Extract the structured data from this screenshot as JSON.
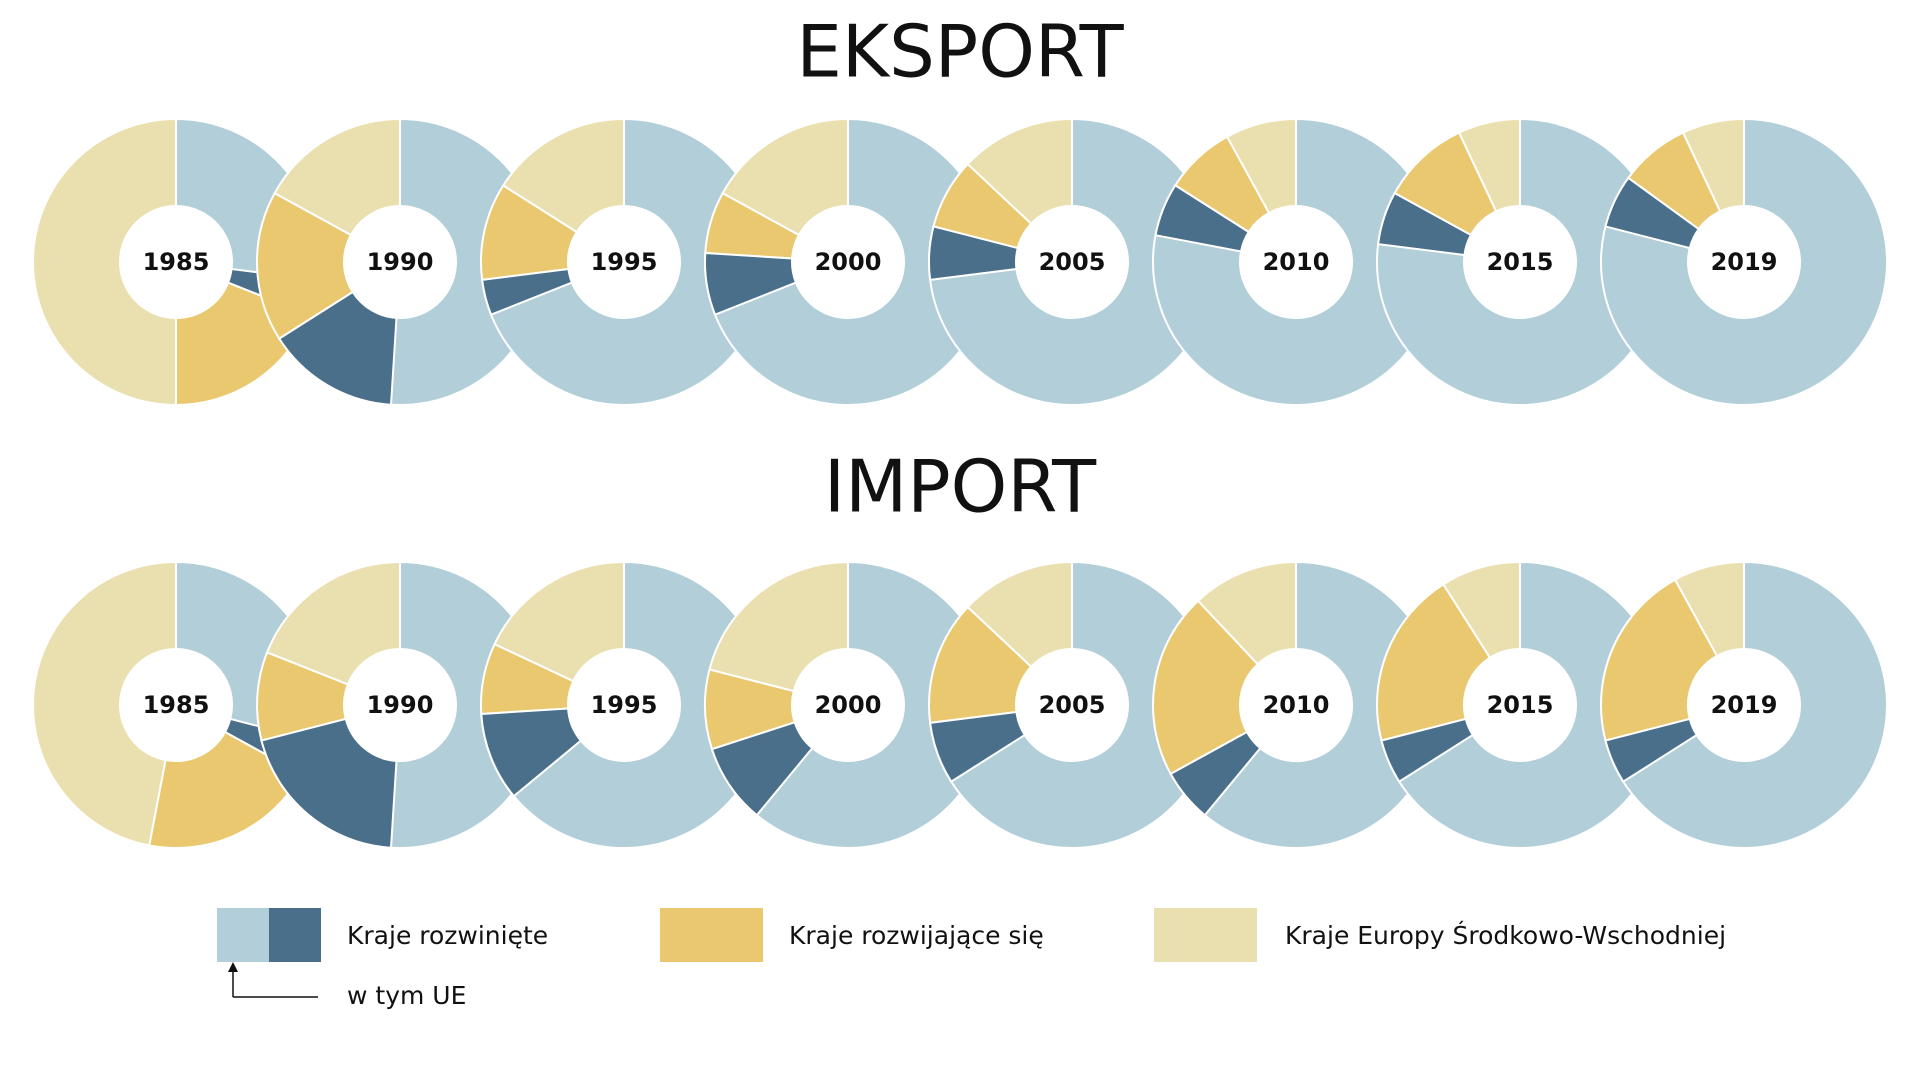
{
  "chart_data": [
    {
      "type": "donut",
      "title": "EKSPORT",
      "categories": [
        "1985",
        "1990",
        "1995",
        "2000",
        "2005",
        "2010",
        "2015",
        "2019"
      ],
      "series": [
        {
          "name": "Kraje rozwinięte",
          "color": "#b2ced8",
          "values": [
            31,
            66,
            73,
            76,
            79,
            84,
            83,
            85
          ]
        },
        {
          "name": "w tym UE",
          "color": "#4a6f8a",
          "values": [
            4,
            15,
            4,
            7,
            6,
            6,
            6,
            6
          ]
        },
        {
          "name": "Kraje rozwijające się",
          "color": "#e9c870",
          "values": [
            19,
            17,
            11,
            7,
            8,
            8,
            10,
            8
          ]
        },
        {
          "name": "Kraje Europy Środkowo-Wschodniej",
          "color": "#eadfae",
          "values": [
            50,
            17,
            16,
            17,
            13,
            8,
            7,
            7
          ]
        }
      ]
    },
    {
      "type": "donut",
      "title": "IMPORT",
      "categories": [
        "1985",
        "1990",
        "1995",
        "2000",
        "2005",
        "2010",
        "2015",
        "2019"
      ],
      "series": [
        {
          "name": "Kraje rozwinięte",
          "color": "#b2ced8",
          "values": [
            33,
            71,
            74,
            70,
            73,
            67,
            71,
            71
          ]
        },
        {
          "name": "w tym UE",
          "color": "#4a6f8a",
          "values": [
            4,
            20,
            10,
            9,
            7,
            6,
            5,
            5
          ]
        },
        {
          "name": "Kraje rozwijające się",
          "color": "#e9c870",
          "values": [
            20,
            10,
            8,
            9,
            14,
            21,
            20,
            21
          ]
        },
        {
          "name": "Kraje Europy Środkowo-Wschodniej",
          "color": "#eadfae",
          "values": [
            47,
            19,
            18,
            21,
            13,
            12,
            9,
            8
          ]
        }
      ]
    }
  ]
}
